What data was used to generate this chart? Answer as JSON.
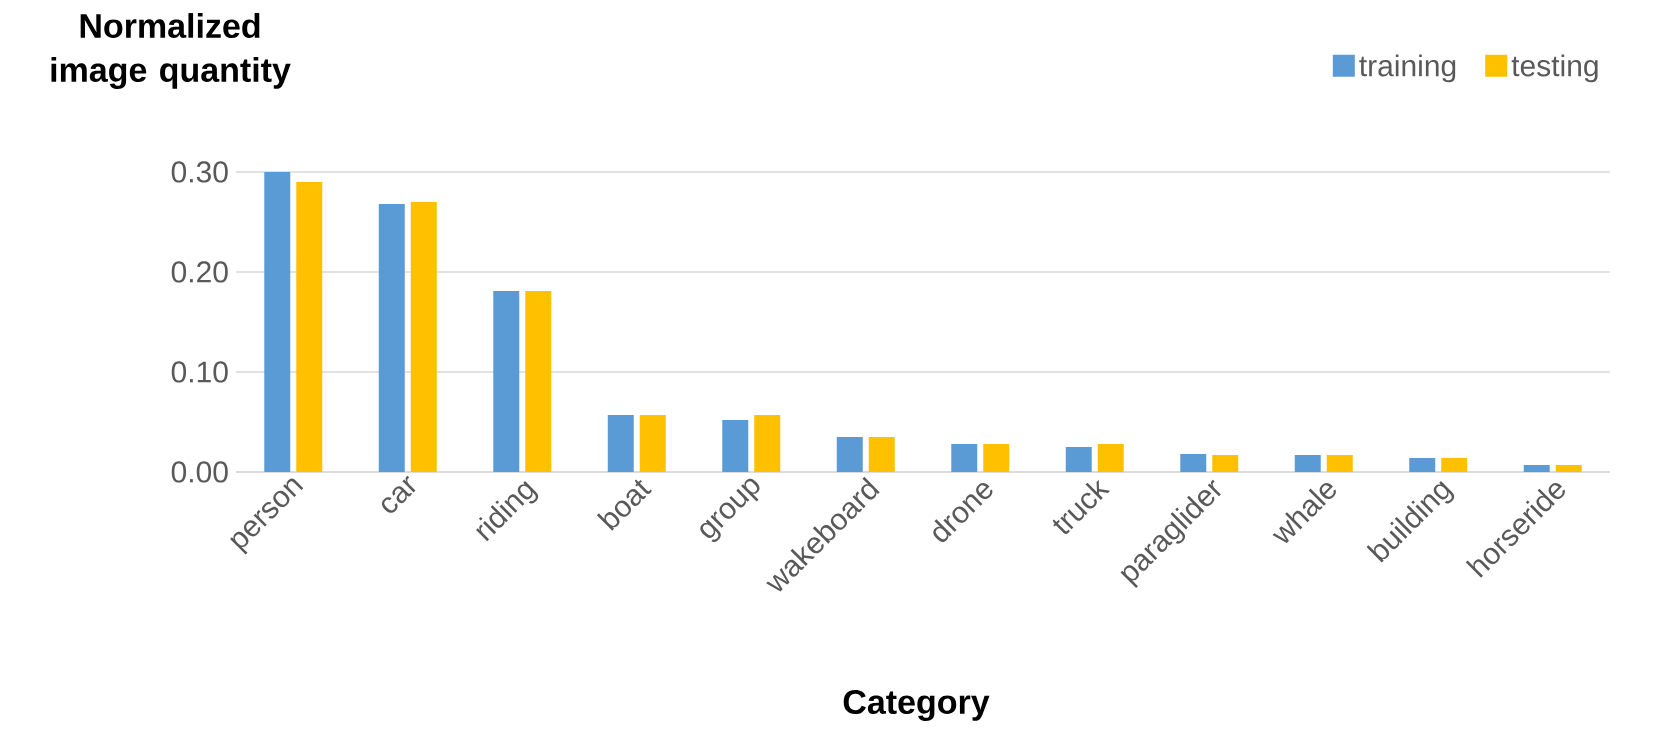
{
  "chart_data": {
    "type": "bar",
    "ylabel": "Normalized image quantity",
    "xlabel": "Category",
    "categories": [
      "person",
      "car",
      "riding",
      "boat",
      "group",
      "wakeboard",
      "drone",
      "truck",
      "paraglider",
      "whale",
      "building",
      "horseride"
    ],
    "series": [
      {
        "name": "training",
        "color": "#5b9bd5",
        "values": [
          0.3,
          0.268,
          0.181,
          0.057,
          0.052,
          0.035,
          0.028,
          0.025,
          0.018,
          0.017,
          0.014,
          0.007
        ]
      },
      {
        "name": "testing",
        "color": "#ffc000",
        "values": [
          0.29,
          0.27,
          0.181,
          0.057,
          0.057,
          0.035,
          0.028,
          0.028,
          0.017,
          0.017,
          0.014,
          0.007
        ]
      }
    ],
    "ylim": [
      0,
      0.3
    ],
    "yticks": [
      {
        "value": 0,
        "label": "0.00"
      },
      {
        "value": 0.1,
        "label": "0.10"
      },
      {
        "value": 0.2,
        "label": "0.20"
      },
      {
        "value": 0.3,
        "label": "0.30"
      }
    ],
    "grid": "y",
    "legend": "top right"
  }
}
